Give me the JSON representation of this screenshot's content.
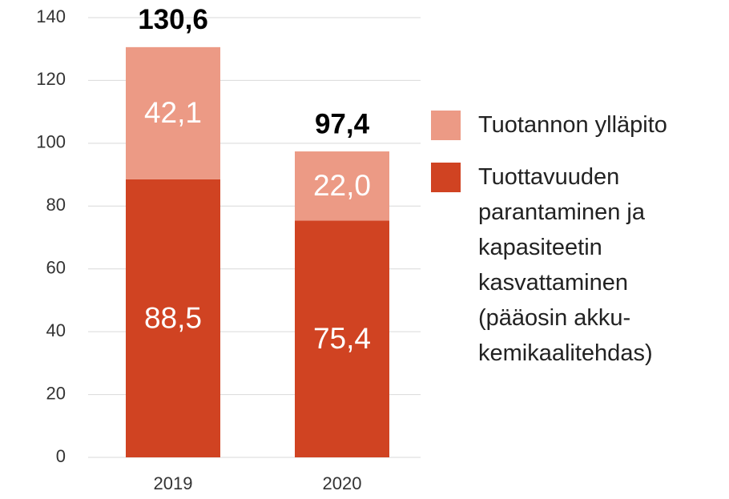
{
  "chart_data": {
    "type": "stacked_bar",
    "categories": [
      "2019",
      "2020"
    ],
    "series": [
      {
        "name": "Tuottavuuden parantaminen ja kapasiteetin kasvattaminen (pääosin akku-kemikaalitehdas)",
        "color": "#d04322",
        "values": [
          88.5,
          75.4
        ],
        "value_labels": [
          "88,5",
          "75,4"
        ]
      },
      {
        "name": "Tuotannon ylläpito",
        "color": "#ec9a85",
        "values": [
          42.1,
          22.0
        ],
        "value_labels": [
          "42,1",
          "22,0"
        ]
      }
    ],
    "totals": [
      130.6,
      97.4
    ],
    "total_labels": [
      "130,6",
      "97,4"
    ],
    "ylim": [
      0,
      140
    ],
    "yticks": [
      0,
      20,
      40,
      60,
      80,
      100,
      120,
      140
    ],
    "grid": true,
    "legend": "right"
  }
}
